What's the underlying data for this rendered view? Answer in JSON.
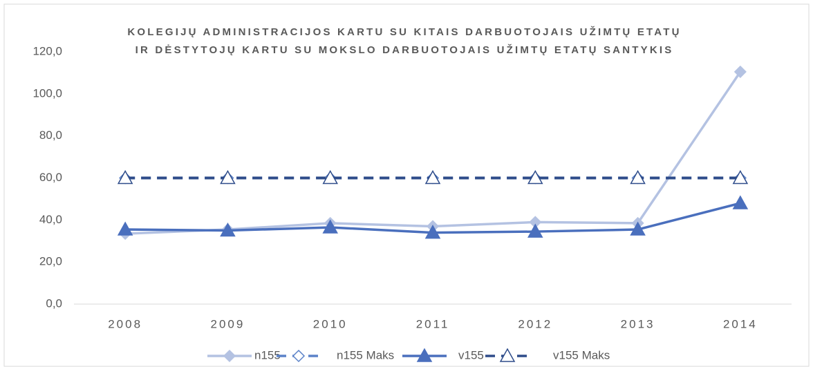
{
  "chart_data": {
    "type": "line",
    "title": [
      "KOLEGIJŲ ADMINISTRACIJOS KARTU SU KITAIS DARBUOTOJAIS UŽIMTŲ ETATŲ",
      "IR DĖSTYTOJŲ KARTU SU MOKSLO DARBUOTOJAIS UŽIMTŲ ETATŲ SANTYKIS"
    ],
    "categories": [
      "2008",
      "2009",
      "2010",
      "2011",
      "2012",
      "2013",
      "2014"
    ],
    "series": [
      {
        "name": "n155",
        "color": "#b4c2e2",
        "marker": "diamond",
        "filled": true,
        "dashed": false,
        "values": [
          33.5,
          35.5,
          38.5,
          37,
          39,
          38.5,
          110.5
        ]
      },
      {
        "name": "n155 Maks",
        "color": "#5b82c8",
        "marker": "diamond",
        "filled": false,
        "dashed": true,
        "values": [
          60,
          60,
          60,
          60,
          60,
          60,
          60
        ]
      },
      {
        "name": "v155",
        "color": "#4a6fbd",
        "marker": "triangle",
        "filled": true,
        "dashed": false,
        "values": [
          35.5,
          35,
          36.5,
          34,
          34.5,
          35.5,
          48
        ]
      },
      {
        "name": "v155 Maks",
        "color": "#2e4c8a",
        "marker": "triangle",
        "filled": false,
        "dashed": true,
        "values": [
          60,
          60,
          60,
          60,
          60,
          60,
          60
        ]
      }
    ],
    "ylim": [
      0,
      120
    ],
    "yticks": [
      {
        "value": 0,
        "label": "0,0"
      },
      {
        "value": 20,
        "label": "20,0"
      },
      {
        "value": 40,
        "label": "40,0"
      },
      {
        "value": 60,
        "label": "60,0"
      },
      {
        "value": 80,
        "label": "80,0"
      },
      {
        "value": 100,
        "label": "100,0"
      },
      {
        "value": 120,
        "label": "120,0"
      }
    ],
    "grid": false,
    "legend": "bottom"
  }
}
